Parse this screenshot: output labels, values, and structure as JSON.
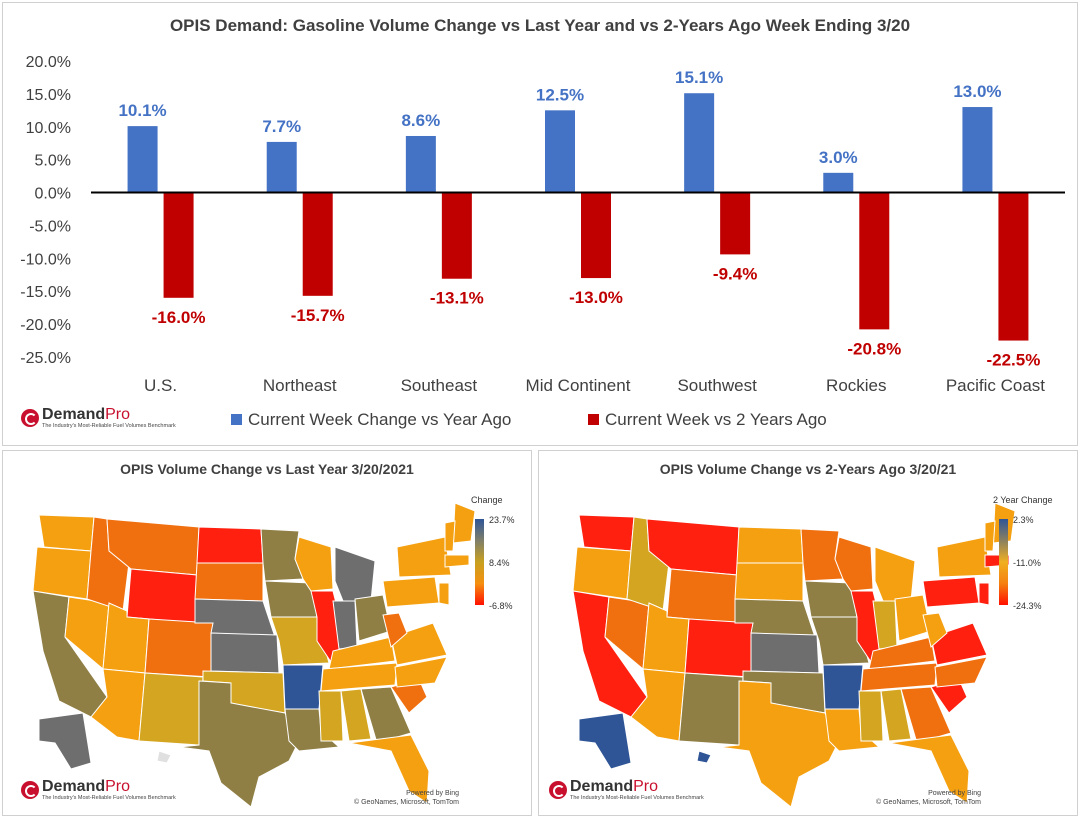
{
  "chart_data": [
    {
      "type": "bar",
      "title": "OPIS Demand: Gasoline Volume Change vs Last Year and vs 2-Years Ago Week Ending 3/20",
      "categories": [
        "U.S.",
        "Northeast",
        "Southeast",
        "Mid Continent",
        "Southwest",
        "Rockies",
        "Pacific Coast"
      ],
      "series": [
        {
          "name": "Current Week Change vs Year Ago",
          "color": "#4472c4",
          "values": [
            10.1,
            7.7,
            8.6,
            12.5,
            15.1,
            3.0,
            13.0
          ],
          "labels": [
            "10.1%",
            "7.7%",
            "8.6%",
            "12.5%",
            "15.1%",
            "3.0%",
            "13.0%"
          ]
        },
        {
          "name": "Current Week vs 2 Years Ago",
          "color": "#c00000",
          "values": [
            -16.0,
            -15.7,
            -13.1,
            -13.0,
            -9.4,
            -20.8,
            -22.5
          ],
          "labels": [
            "-16.0%",
            "-15.7%",
            "-13.1%",
            "-13.0%",
            "-9.4%",
            "-20.8%",
            "-22.5%"
          ]
        }
      ],
      "ylim": [
        -25,
        20
      ],
      "yticks": [
        20,
        15,
        10,
        5,
        0,
        -5,
        -10,
        -15,
        -20,
        -25
      ],
      "ytick_labels": [
        "20.0%",
        "15.0%",
        "10.0%",
        "5.0%",
        "0.0%",
        "-5.0%",
        "-10.0%",
        "-15.0%",
        "-20.0%",
        "-25.0%"
      ],
      "legend_position": "bottom"
    },
    {
      "type": "heatmap",
      "title": "OPIS Volume Change vs Last Year 3/20/2021",
      "legend": {
        "title": "Change",
        "max": "23.7%",
        "mid": "8.4%",
        "min": "-6.8%"
      }
    },
    {
      "type": "heatmap",
      "title": "OPIS Volume Change vs 2-Years Ago 3/20/21",
      "legend": {
        "title": "2 Year Change",
        "max": "2.3%",
        "mid": "-11.0%",
        "min": "-24.3%"
      }
    }
  ],
  "branding": {
    "logo_name": "Demand",
    "logo_suffix": "Pro",
    "logo_tagline": "The Industry's Most-Reliable Fuel Volumes Benchmark"
  },
  "credits": {
    "powered_by": "Powered by Bing",
    "attribution": "© GeoNames, Microsoft, TomTom"
  },
  "colors": {
    "grey_high": "#6e6e6e",
    "olive": "#8f7f45",
    "gold": "#d4a520",
    "orange": "#f5a010",
    "deep_orange": "#f07010",
    "red": "#ff2010",
    "blue_high": "#2f5597"
  }
}
